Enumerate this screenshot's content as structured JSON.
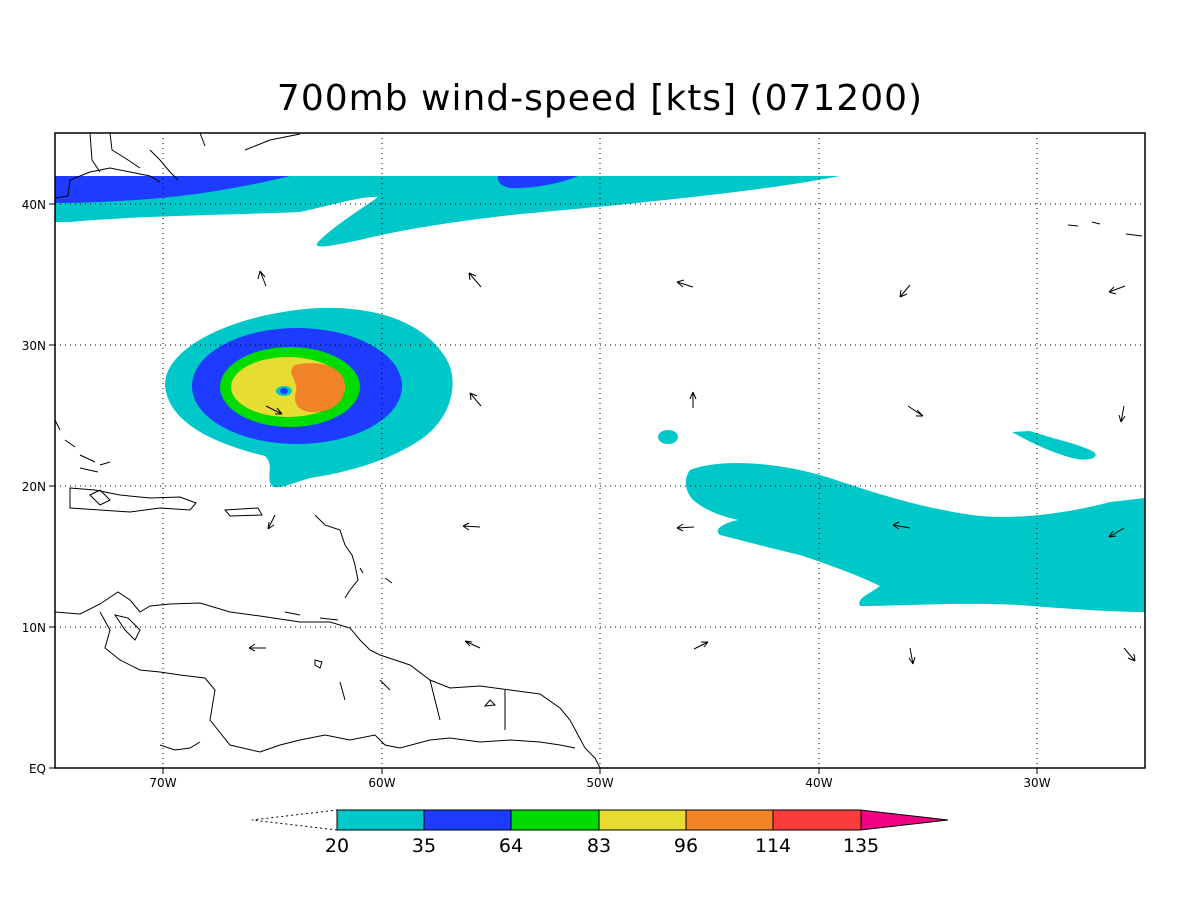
{
  "title": "700mb wind-speed [kts] (071200)",
  "map": {
    "lon_range": [
      -75,
      -25
    ],
    "lat_range": [
      0,
      45
    ],
    "lon_ticks": [
      "70W",
      "60W",
      "50W",
      "40W",
      "30W"
    ],
    "lat_ticks": [
      "EQ",
      "10N",
      "20N",
      "30N",
      "40N"
    ],
    "grid": "dotted"
  },
  "colorbar": {
    "levels": [
      "20",
      "35",
      "64",
      "83",
      "96",
      "114",
      "135"
    ],
    "colors": [
      "#ffffff",
      "#00c8c8",
      "#1e3cff",
      "#00dc00",
      "#e6dc32",
      "#f08228",
      "#fa3c3c",
      "#f00082"
    ]
  }
}
